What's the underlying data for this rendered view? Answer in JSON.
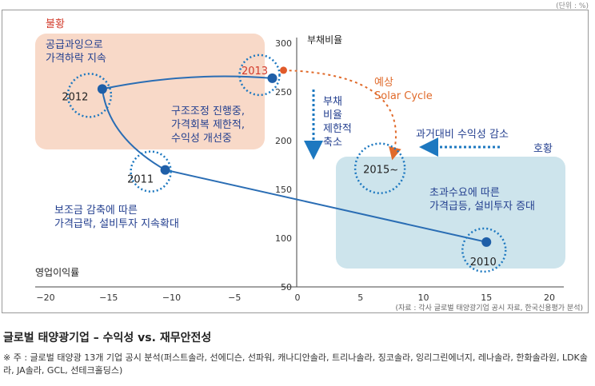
{
  "unit_label": "(단위 : %)",
  "figure_title": "글로벌 태양광기업 – 수익성 vs. 재무안전성",
  "footnote": "※ 주 : 글로벌 태양광 13개 기업 공시 분석(퍼스트솔라, 선에디슨, 선파워, 캐나디안솔라, 트리나솔라, 징코솔라, 잉리그린에너지, 레나솔라, 한화솔라원, LDK솔라, JA솔라, GCL, 선테크홀딩스)",
  "chart_data": {
    "type": "scatter",
    "xlabel": "영업이익률",
    "ylabel": "부채비율",
    "xlim": [
      -20,
      20
    ],
    "ylim": [
      50,
      300
    ],
    "xticks": [
      -20,
      -15,
      -10,
      -5,
      0,
      5,
      10,
      15,
      20
    ],
    "yticks": [
      50,
      100,
      150,
      200,
      250,
      300
    ],
    "source": "(자료 : 각사 글로벌 태양광기업 공시 자료, 한국신용평가 분석)",
    "series": [
      {
        "points": [
          {
            "label": "2010",
            "x": 15.0,
            "y": 96
          },
          {
            "label": "2011",
            "x": -10.5,
            "y": 170
          },
          {
            "label": "2012",
            "x": -15.5,
            "y": 253
          },
          {
            "label": "2013",
            "x": -2.0,
            "y": 264
          }
        ]
      }
    ],
    "forecast_point": {
      "label": "2015~",
      "x": 7.5,
      "y": 188
    },
    "regions": [
      {
        "label": "불황",
        "color": "#f8d9c8"
      },
      {
        "label": "호황",
        "color": "#cde4ec"
      }
    ],
    "annotations": {
      "oversupply": "공급과잉으로\n가격하락 지속",
      "restructure": "구조조정 진행중,\n가격회복 제한적,\n수익성 개선중",
      "subsidy": "보조금 감축에 따른\n가격급락, 설비투자 지속확대",
      "excess_demand": "초과수요에 따른\n가격급등, 설비투자 증대",
      "debt_down": "부채\n비율\n제한적\n축소",
      "forecast": "예상\nSolar Cycle",
      "vs_past": "과거대비 수익성 감소"
    },
    "colors": {
      "line": "#2a6db4",
      "point": "#1f5fa8",
      "point_2013": "#e05a2a",
      "forecast_line": "#e06a2a",
      "label_blue": "#233f8f",
      "label_red": "#d23a2a",
      "dotted_arrow": "#1d78c0"
    }
  }
}
